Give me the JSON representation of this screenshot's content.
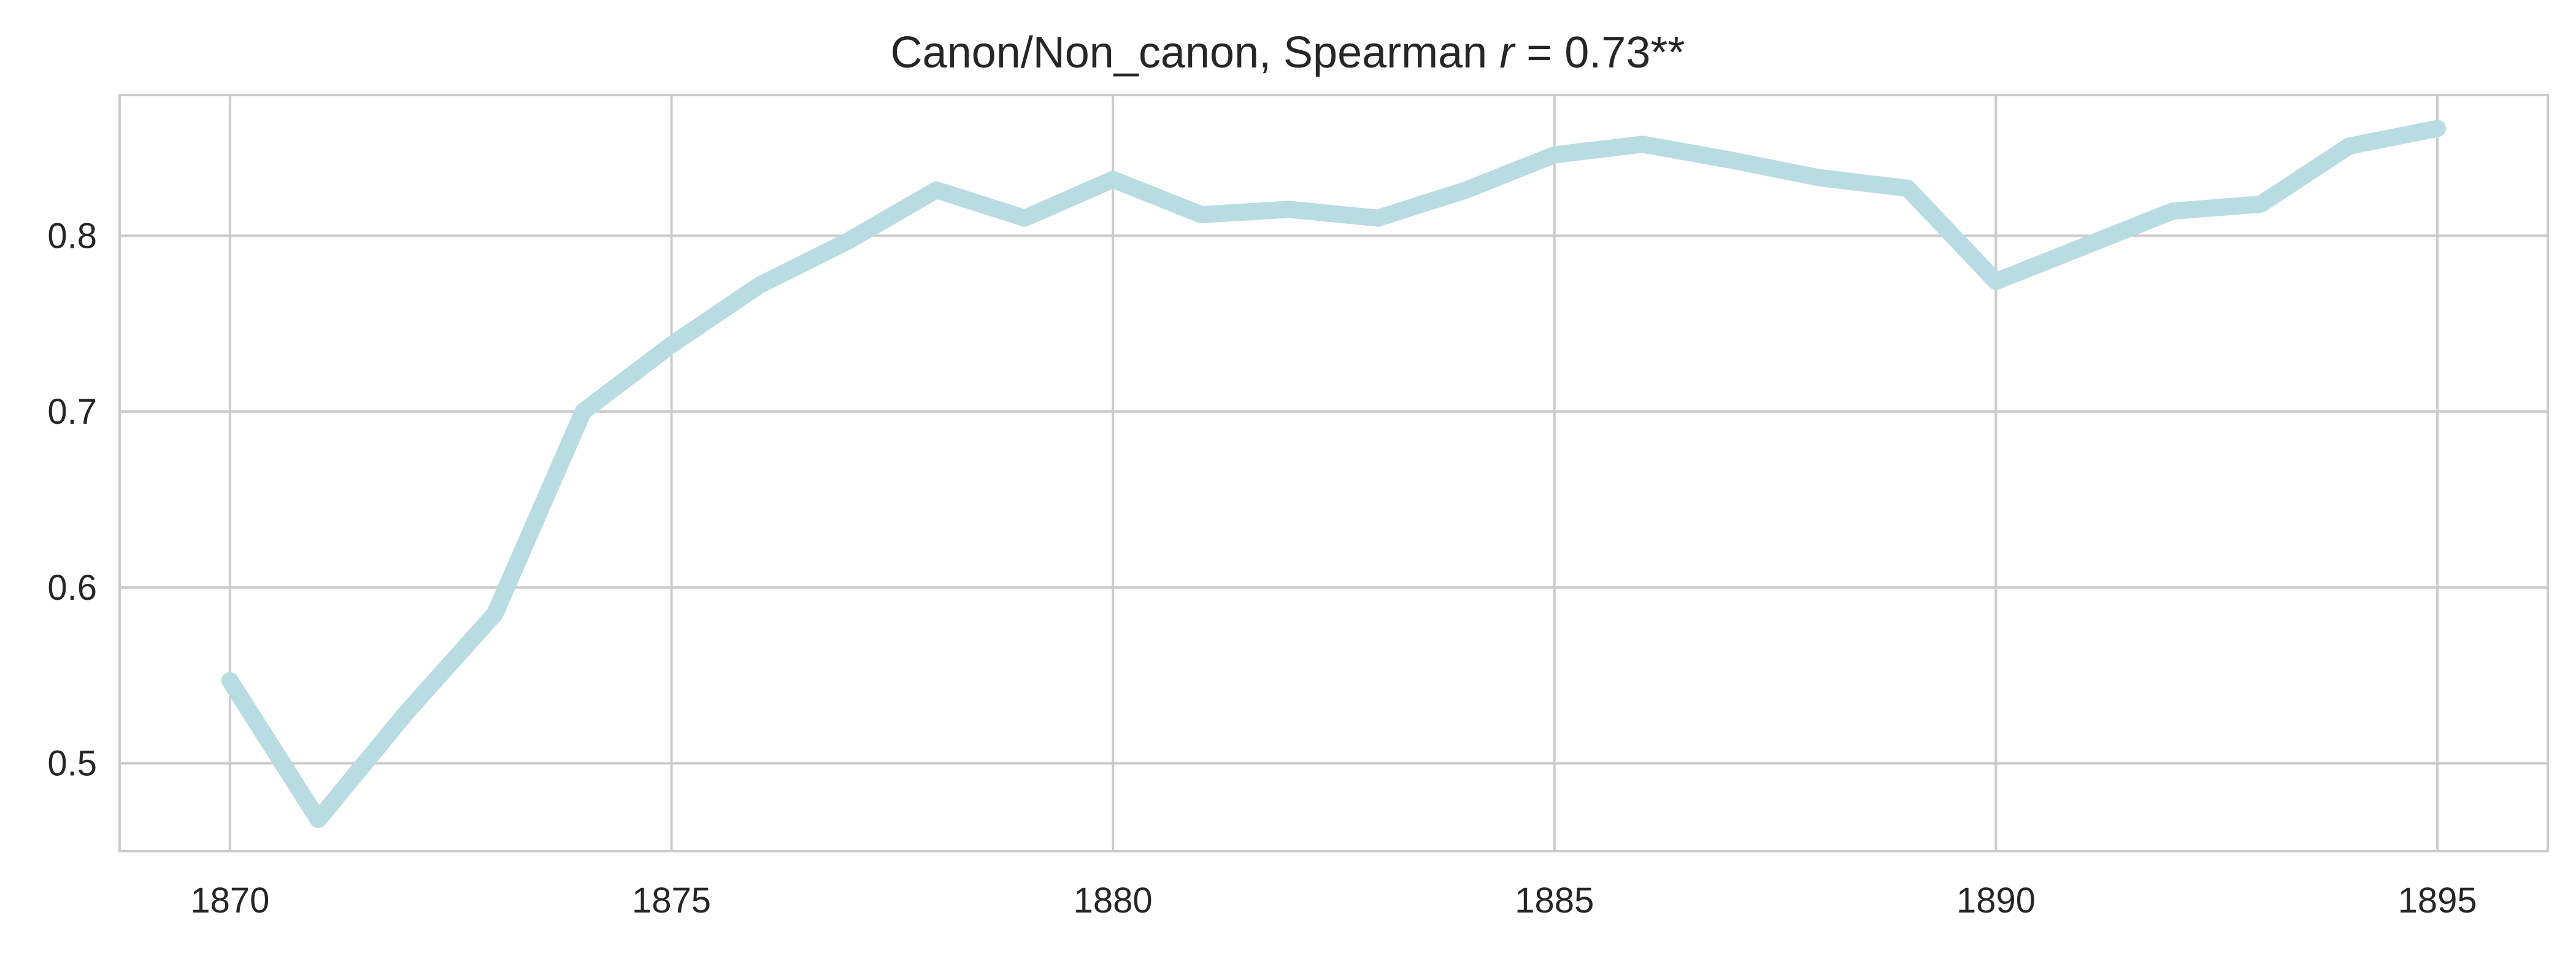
{
  "chart_data": {
    "type": "line",
    "title": {
      "prefix": "Canon/Non_canon, Spearman ",
      "symbol": "r",
      "suffix": " = 0.73**"
    },
    "xlabel": "",
    "ylabel": "",
    "xlim": [
      1868.75,
      1896.25
    ],
    "ylim": [
      0.45,
      0.88
    ],
    "x_ticks": [
      1870,
      1875,
      1880,
      1885,
      1890,
      1895
    ],
    "y_ticks": [
      0.5,
      0.6,
      0.7,
      0.8
    ],
    "x_tick_labels": [
      "1870",
      "1875",
      "1880",
      "1885",
      "1890",
      "1895"
    ],
    "y_tick_labels": [
      "0.5",
      "0.6",
      "0.7",
      "0.8"
    ],
    "grid": true,
    "legend": "none",
    "line_color": "#b9dce2",
    "series": [
      {
        "x": [
          1870,
          1871,
          1872,
          1873,
          1874,
          1875,
          1876,
          1877,
          1878,
          1879,
          1880,
          1881,
          1882,
          1883,
          1884,
          1885,
          1886,
          1887,
          1888,
          1889,
          1890,
          1891,
          1892,
          1893,
          1894,
          1895
        ],
        "values": [
          0.547,
          0.468,
          0.529,
          0.585,
          0.7,
          0.738,
          0.772,
          0.797,
          0.826,
          0.81,
          0.832,
          0.812,
          0.815,
          0.81,
          0.826,
          0.846,
          0.852,
          0.843,
          0.833,
          0.827,
          0.774,
          0.794,
          0.814,
          0.818,
          0.851,
          0.861
        ]
      }
    ]
  }
}
